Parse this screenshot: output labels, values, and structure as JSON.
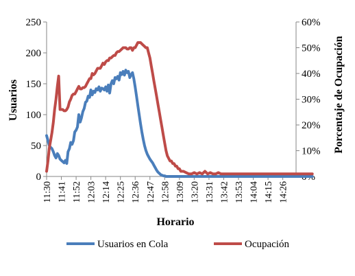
{
  "chart_data": {
    "type": "line",
    "title": "",
    "xlabel": "Horario",
    "ylabel": "Usuarios",
    "y2label": "Porcentaje de Ocupación",
    "ylim": [
      0,
      250
    ],
    "y2lim": [
      0,
      60
    ],
    "yticks": [
      "0",
      "50",
      "100",
      "150",
      "200",
      "250"
    ],
    "y2ticks": [
      "0%",
      "10%",
      "20%",
      "30%",
      "40%",
      "50%",
      "60%"
    ],
    "xticks": [
      "11:30",
      "11:41",
      "11:52",
      "12:03",
      "12:14",
      "12:25",
      "12:36",
      "12:47",
      "12:58",
      "13:09",
      "13:20",
      "13:31",
      "13:42",
      "13:53",
      "14:04",
      "14:15",
      "14:26"
    ],
    "grid": false,
    "legend_position": "bottom",
    "colors": {
      "usuarios": "#4a7ebb",
      "ocupacion": "#be4b48",
      "axis": "#868686"
    },
    "series": [
      {
        "name": "Usuarios en Cola",
        "axis": "left",
        "x_minutes": [
          0,
          1,
          2,
          3,
          4,
          5,
          6,
          7,
          8,
          9,
          10,
          11,
          12,
          13,
          14,
          15,
          16,
          17,
          18,
          19,
          20,
          21,
          22,
          23,
          24,
          25,
          26,
          27,
          28,
          29,
          30,
          31,
          32,
          33,
          34,
          35,
          36,
          37,
          38,
          39,
          40,
          41,
          42,
          43,
          44,
          45,
          46,
          47,
          48,
          49,
          50,
          51,
          52,
          53,
          54,
          55,
          56,
          57,
          58,
          59,
          60,
          61,
          62,
          63,
          64,
          65,
          66,
          67,
          68,
          69,
          70,
          71,
          72,
          73,
          74,
          75,
          76,
          77,
          78,
          79,
          80,
          81,
          82,
          83,
          84,
          85,
          86,
          87,
          88,
          89,
          90,
          91,
          92,
          93,
          94,
          95,
          96,
          97,
          98,
          99,
          100,
          102,
          104,
          106,
          108,
          110,
          112,
          114,
          116,
          118,
          120,
          122,
          124,
          126,
          128,
          130,
          132,
          134,
          136,
          138,
          140,
          142,
          144,
          146,
          148,
          150,
          152,
          154,
          156,
          158,
          160,
          162,
          164,
          166,
          168,
          170,
          172,
          174,
          176,
          178,
          180,
          182,
          184,
          186,
          188,
          190,
          192,
          194,
          196,
          198
        ],
        "values": [
          66,
          58,
          50,
          47,
          45,
          40,
          34,
          30,
          37,
          34,
          28,
          26,
          24,
          22,
          26,
          21,
          40,
          45,
          55,
          52,
          58,
          72,
          75,
          80,
          100,
          88,
          95,
          105,
          110,
          120,
          122,
          130,
          128,
          140,
          132,
          138,
          136,
          142,
          140,
          145,
          138,
          143,
          142,
          140,
          145,
          138,
          148,
          135,
          150,
          155,
          150,
          160,
          158,
          162,
          156,
          168,
          165,
          170,
          164,
          172,
          168,
          170,
          160,
          165,
          168,
          158,
          145,
          130,
          115,
          100,
          85,
          72,
          60,
          50,
          42,
          36,
          32,
          28,
          25,
          22,
          18,
          14,
          10,
          7,
          5,
          3,
          2,
          1,
          1,
          0,
          0,
          0,
          0,
          0,
          0,
          0,
          0,
          0,
          0,
          0,
          0,
          0,
          0,
          0,
          0,
          0,
          0,
          0,
          0,
          0,
          0,
          0,
          0,
          0,
          0,
          0,
          0,
          0,
          0,
          0,
          0,
          0,
          0,
          0,
          0,
          0,
          0,
          0,
          0,
          0,
          0,
          0,
          0,
          0,
          0,
          0,
          0,
          0,
          0,
          0,
          0,
          0,
          0,
          0,
          0,
          0,
          0,
          0,
          0,
          0
        ]
      },
      {
        "name": "Ocupación",
        "axis": "right",
        "x_minutes": [
          0,
          1,
          2,
          3,
          4,
          5,
          6,
          7,
          8,
          9,
          10,
          11,
          12,
          13,
          14,
          15,
          16,
          17,
          18,
          19,
          20,
          21,
          22,
          23,
          24,
          25,
          26,
          27,
          28,
          29,
          30,
          31,
          32,
          33,
          34,
          35,
          36,
          37,
          38,
          39,
          40,
          41,
          42,
          43,
          44,
          45,
          46,
          47,
          48,
          49,
          50,
          51,
          52,
          53,
          54,
          55,
          56,
          57,
          58,
          59,
          60,
          61,
          62,
          63,
          64,
          65,
          66,
          67,
          68,
          69,
          70,
          71,
          72,
          73,
          74,
          75,
          76,
          77,
          78,
          79,
          80,
          81,
          82,
          83,
          84,
          85,
          86,
          87,
          88,
          89,
          90,
          91,
          92,
          93,
          94,
          95,
          96,
          97,
          98,
          99,
          100,
          102,
          104,
          106,
          108,
          110,
          112,
          114,
          116,
          118,
          120,
          122,
          124,
          126,
          128,
          130,
          132,
          134,
          136,
          138,
          140,
          142,
          144,
          146,
          148,
          150,
          152,
          154,
          156,
          158,
          160,
          162,
          164,
          166,
          168,
          170,
          172,
          174,
          176,
          178,
          180,
          182,
          184,
          186,
          188,
          190,
          192,
          194,
          196,
          198
        ],
        "values": [
          2,
          6,
          11,
          14,
          17,
          21,
          26,
          30,
          35,
          39,
          26,
          26,
          26,
          25.5,
          25.5,
          26,
          27,
          29,
          30,
          31.5,
          32,
          32,
          33,
          34,
          35,
          34,
          34,
          34.5,
          34.5,
          35,
          36,
          37,
          38,
          38,
          40,
          39.5,
          40,
          41,
          42,
          42,
          42,
          43,
          44,
          43.5,
          44.5,
          45,
          45,
          46,
          46,
          46.5,
          47,
          47,
          48,
          48.5,
          48.5,
          49,
          49.5,
          50,
          50,
          50,
          49.5,
          49.5,
          50,
          50,
          49,
          50,
          50,
          51,
          52,
          52,
          52,
          51.5,
          51,
          50.5,
          50,
          50,
          48,
          46,
          43,
          40,
          37,
          34,
          31,
          28,
          25,
          22,
          19,
          16,
          13,
          10,
          8,
          7,
          6,
          6,
          5,
          5,
          4,
          4,
          3,
          3,
          2,
          2,
          1.5,
          1,
          1,
          1.5,
          1,
          1.5,
          1,
          2,
          1,
          1.5,
          1,
          1,
          1.5,
          1,
          1,
          1,
          1,
          1,
          1,
          1,
          1,
          1,
          1,
          1,
          1,
          1,
          1,
          1,
          1,
          1,
          1,
          1,
          1,
          1,
          1,
          1,
          1,
          1,
          1,
          1,
          1,
          1,
          1,
          1,
          1,
          1,
          1,
          1
        ]
      }
    ]
  }
}
